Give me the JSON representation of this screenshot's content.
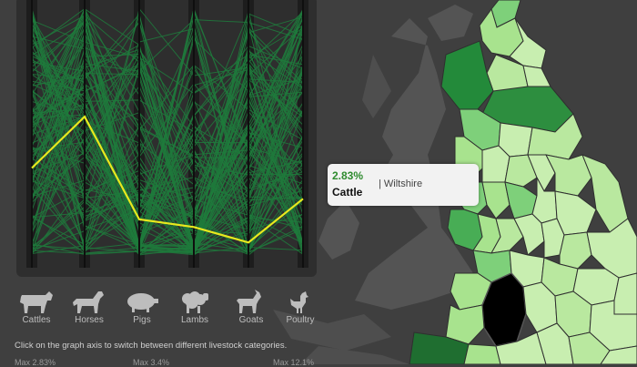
{
  "categories": [
    {
      "key": "cattles",
      "label": "Cattles",
      "icon": "cow-icon"
    },
    {
      "key": "horses",
      "label": "Horses",
      "icon": "horse-icon"
    },
    {
      "key": "pigs",
      "label": "Pigs",
      "icon": "pig-icon"
    },
    {
      "key": "lambs",
      "label": "Lambs",
      "icon": "sheep-icon"
    },
    {
      "key": "goats",
      "label": "Goats",
      "icon": "goat-icon"
    },
    {
      "key": "poultry",
      "label": "Poultry",
      "icon": "chicken-icon"
    }
  ],
  "hint": "Click on the graph axis to switch between different livestock categories.",
  "max_labels": [
    "Max 2.83%",
    "Max 3.4%",
    "Max 12.1%"
  ],
  "tooltip": {
    "percent": "2.83%",
    "category": "Cattle",
    "county": "| Wiltshire"
  },
  "colors": {
    "highlight_line": "#e8e81e",
    "background_lines": "#1e7a3c",
    "selected_county": "#000000",
    "map_light": "#c8eeb0",
    "map_dark": "#1f7a34"
  },
  "chart_data": {
    "type": "parallel-coordinates",
    "axes": [
      "Cattles",
      "Horses",
      "Pigs",
      "Lambs",
      "Goats",
      "Poultry"
    ],
    "highlight": {
      "name": "Wiltshire",
      "values": [
        0.36,
        0.56,
        0.16,
        0.13,
        0.07,
        0.24
      ]
    }
  }
}
